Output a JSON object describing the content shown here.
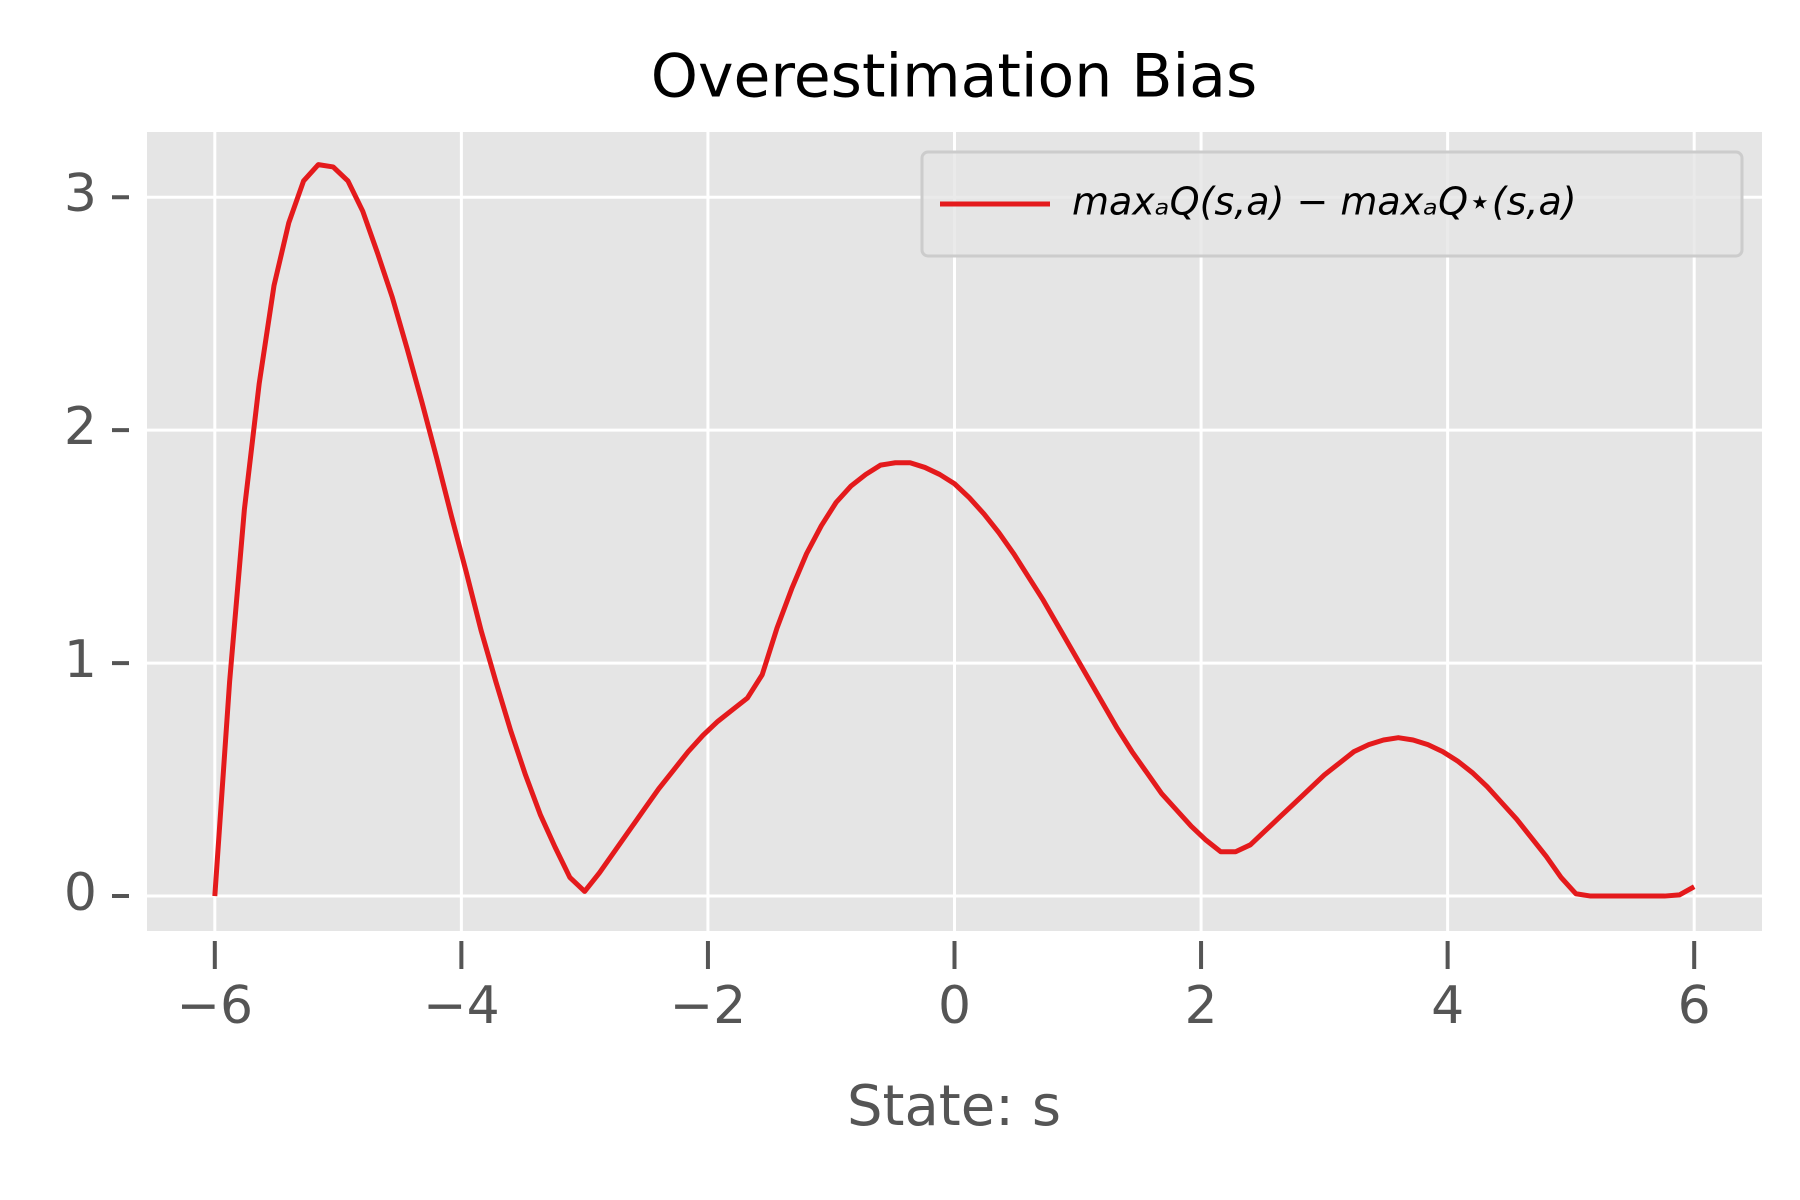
{
  "chart_data": {
    "type": "line",
    "title": "Overestimation Bias",
    "xlabel": "State: s",
    "x": [
      -6,
      -5.88,
      -5.76,
      -5.64,
      -5.52,
      -5.4,
      -5.28,
      -5.16,
      -5.04,
      -4.92,
      -4.8,
      -4.68,
      -4.56,
      -4.44,
      -4.32,
      -4.2,
      -4.08,
      -3.96,
      -3.84,
      -3.72,
      -3.6,
      -3.48,
      -3.36,
      -3.24,
      -3.12,
      -3,
      -2.88,
      -2.76,
      -2.64,
      -2.52,
      -2.4,
      -2.28,
      -2.16,
      -2.04,
      -1.92,
      -1.8,
      -1.68,
      -1.56,
      -1.44,
      -1.32,
      -1.2,
      -1.08,
      -0.96,
      -0.84,
      -0.72,
      -0.6,
      -0.48,
      -0.36,
      -0.24,
      -0.12,
      0,
      0.12,
      0.24,
      0.36,
      0.48,
      0.6,
      0.72,
      0.84,
      0.96,
      1.08,
      1.2,
      1.32,
      1.44,
      1.56,
      1.68,
      1.8,
      1.92,
      2.04,
      2.16,
      2.28,
      2.4,
      2.52,
      2.64,
      2.76,
      2.88,
      3,
      3.12,
      3.24,
      3.36,
      3.48,
      3.6,
      3.72,
      3.84,
      3.96,
      4.08,
      4.2,
      4.32,
      4.44,
      4.56,
      4.68,
      4.8,
      4.92,
      5.04,
      5.16,
      5.28,
      5.4,
      5.52,
      5.64,
      5.76,
      5.88,
      6
    ],
    "series": [
      {
        "name": "maxₐQ(s,a) − maxₐQ⋆(s,a)",
        "color": "#e41a1c",
        "values": [
          0,
          0.92,
          1.66,
          2.2,
          2.62,
          2.89,
          3.07,
          3.14,
          3.13,
          3.07,
          2.94,
          2.76,
          2.57,
          2.35,
          2.12,
          1.88,
          1.63,
          1.39,
          1.14,
          0.92,
          0.71,
          0.52,
          0.35,
          0.21,
          0.08,
          0.02,
          0.1,
          0.19,
          0.28,
          0.37,
          0.46,
          0.54,
          0.62,
          0.69,
          0.75,
          0.8,
          0.85,
          0.95,
          1.15,
          1.32,
          1.47,
          1.59,
          1.69,
          1.76,
          1.81,
          1.85,
          1.86,
          1.86,
          1.84,
          1.81,
          1.77,
          1.71,
          1.64,
          1.56,
          1.47,
          1.37,
          1.27,
          1.16,
          1.05,
          0.94,
          0.83,
          0.72,
          0.62,
          0.53,
          0.44,
          0.37,
          0.3,
          0.24,
          0.19,
          0.19,
          0.22,
          0.28,
          0.34,
          0.4,
          0.46,
          0.52,
          0.57,
          0.62,
          0.65,
          0.67,
          0.68,
          0.67,
          0.65,
          0.62,
          0.58,
          0.53,
          0.47,
          0.4,
          0.33,
          0.25,
          0.17,
          0.08,
          0.01,
          0,
          0,
          0,
          0,
          0,
          0,
          0.005,
          0.04
        ]
      }
    ],
    "xlim": [
      -6.55,
      6.55
    ],
    "ylim": [
      -0.15,
      3.28
    ],
    "xticks": [
      {
        "value": -6,
        "label": "−6"
      },
      {
        "value": -4,
        "label": "−4"
      },
      {
        "value": -2,
        "label": "−2"
      },
      0,
      2,
      4,
      6
    ],
    "yticks": [
      0,
      1,
      2,
      3
    ],
    "grid": true,
    "legend": "upper right"
  }
}
